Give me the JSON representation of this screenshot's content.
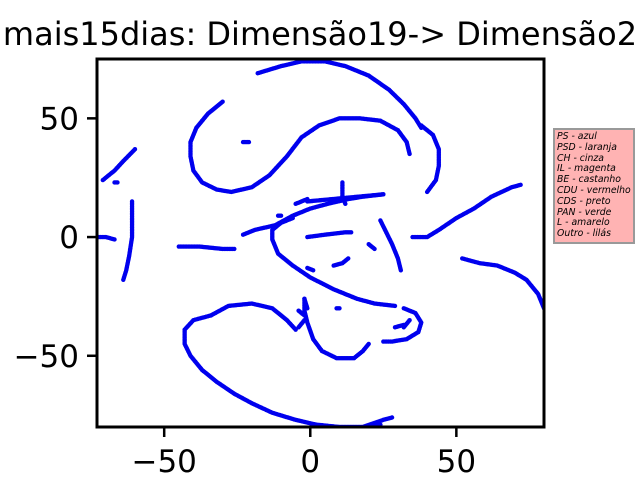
{
  "chart_data": {
    "type": "scatter",
    "title": "mais15dias: Dimensão19-> Dimensão2",
    "xlabel": "",
    "ylabel": "",
    "xlim": [
      -73,
      80
    ],
    "ylim": [
      -80,
      75
    ],
    "xticks": [
      -50,
      0,
      50
    ],
    "xtick_labels": [
      "−50",
      "0",
      "50"
    ],
    "yticks": [
      -50,
      0,
      50
    ],
    "ytick_labels": [
      "−50",
      "0",
      "50"
    ],
    "grid": false,
    "point_color": "#0000ee",
    "series": [
      {
        "segments": [
          [
            [
              -18,
              69
            ],
            [
              -10,
              72
            ],
            [
              -3,
              74
            ],
            [
              5,
              74
            ],
            [
              12,
              72
            ],
            [
              20,
              68
            ],
            [
              27,
              62
            ],
            [
              32,
              56
            ],
            [
              36,
              50
            ],
            [
              38,
              46
            ]
          ],
          [
            [
              -71,
              24
            ],
            [
              -67,
              28
            ],
            [
              -64,
              32
            ],
            [
              -60,
              37
            ]
          ],
          [
            [
              -67,
              23
            ],
            [
              -66,
              23
            ]
          ],
          [
            [
              -30,
              57
            ],
            [
              -35,
              52
            ],
            [
              -39,
              46
            ],
            [
              -41,
              40
            ],
            [
              -41,
              34
            ],
            [
              -40,
              28
            ],
            [
              -37,
              23
            ],
            [
              -32,
              20
            ],
            [
              -27,
              19
            ],
            [
              -20,
              21
            ],
            [
              -14,
              26
            ],
            [
              -8,
              34
            ],
            [
              -3,
              42
            ],
            [
              3,
              47
            ],
            [
              10,
              50
            ],
            [
              17,
              50
            ],
            [
              24,
              49
            ],
            [
              30,
              45
            ],
            [
              33,
              40
            ],
            [
              34,
              35
            ]
          ],
          [
            [
              11,
              23
            ],
            [
              11,
              17
            ],
            [
              12,
              14
            ]
          ],
          [
            [
              -23,
              40
            ],
            [
              -21,
              40
            ]
          ],
          [
            [
              38,
              47
            ],
            [
              42,
              43
            ],
            [
              44,
              37
            ],
            [
              44,
              30
            ],
            [
              43,
              24
            ],
            [
              40,
              19
            ]
          ],
          [
            [
              -61,
              15
            ],
            [
              -61,
              8
            ],
            [
              -61,
              0
            ],
            [
              -62,
              -8
            ],
            [
              -63,
              -14
            ],
            [
              -64,
              -18
            ]
          ],
          [
            [
              -73,
              0
            ],
            [
              -70,
              0
            ],
            [
              -67,
              -1
            ]
          ],
          [
            [
              -45,
              -4
            ],
            [
              -38,
              -4
            ],
            [
              -30,
              -5
            ],
            [
              -26,
              -5
            ]
          ],
          [
            [
              -23,
              1
            ],
            [
              -19,
              3
            ],
            [
              -12,
              5
            ],
            [
              -6,
              9
            ],
            [
              0,
              12
            ],
            [
              6,
              14
            ],
            [
              13,
              16
            ],
            [
              18,
              17
            ],
            [
              25,
              18
            ]
          ],
          [
            [
              -1,
              16
            ],
            [
              -5,
              14
            ]
          ],
          [
            [
              25,
              18
            ],
            [
              -1,
              15
            ]
          ],
          [
            [
              -11,
              9
            ],
            [
              -10,
              9
            ]
          ],
          [
            [
              -6,
              8
            ],
            [
              -10,
              6
            ],
            [
              -13,
              3
            ],
            [
              -13,
              -1
            ],
            [
              -11,
              -7
            ],
            [
              -6,
              -12
            ],
            [
              0,
              -17
            ],
            [
              8,
              -22
            ],
            [
              16,
              -26
            ],
            [
              22,
              -28
            ],
            [
              29,
              -29
            ]
          ],
          [
            [
              -1,
              -30
            ],
            [
              -2,
              -26
            ]
          ],
          [
            [
              -1,
              -13
            ],
            [
              1,
              -14
            ]
          ],
          [
            [
              -1,
              0
            ],
            [
              5,
              1
            ],
            [
              12,
              2
            ],
            [
              14,
              2
            ]
          ],
          [
            [
              8,
              -12
            ],
            [
              11,
              -11
            ],
            [
              13,
              -9
            ]
          ],
          [
            [
              24,
              7
            ],
            [
              26,
              2
            ],
            [
              28,
              -3
            ],
            [
              30,
              -9
            ],
            [
              31,
              -14
            ]
          ],
          [
            [
              20,
              -3
            ],
            [
              22,
              -5
            ]
          ],
          [
            [
              35,
              0
            ],
            [
              40,
              0
            ],
            [
              44,
              3
            ],
            [
              50,
              8
            ],
            [
              56,
              12
            ],
            [
              62,
              17
            ],
            [
              69,
              21
            ],
            [
              72,
              22
            ]
          ],
          [
            [
              52,
              -9
            ],
            [
              58,
              -11
            ],
            [
              64,
              -12
            ],
            [
              70,
              -15
            ],
            [
              74,
              -18
            ],
            [
              78,
              -24
            ],
            [
              80,
              -30
            ]
          ],
          [
            [
              32,
              -30
            ],
            [
              36,
              -32
            ],
            [
              38,
              -36
            ],
            [
              37,
              -40
            ],
            [
              33,
              -43
            ],
            [
              28,
              -44
            ],
            [
              25,
              -44
            ]
          ],
          [
            [
              32,
              -38
            ],
            [
              34,
              -35
            ]
          ],
          [
            [
              32,
              -37
            ],
            [
              29,
              -38
            ]
          ],
          [
            [
              -2,
              -26
            ],
            [
              -2,
              -31
            ],
            [
              -1,
              -36
            ],
            [
              1,
              -43
            ],
            [
              4,
              -48
            ],
            [
              9,
              -51
            ],
            [
              15,
              -51
            ],
            [
              18,
              -48
            ],
            [
              20,
              -45
            ]
          ],
          [
            [
              9,
              -30
            ],
            [
              10,
              -30
            ]
          ],
          [
            [
              -2,
              -33
            ],
            [
              -4,
              -31
            ]
          ],
          [
            [
              -34,
              -33
            ],
            [
              -40,
              -35
            ],
            [
              -43,
              -39
            ],
            [
              -43,
              -45
            ],
            [
              -41,
              -50
            ],
            [
              -37,
              -56
            ],
            [
              -32,
              -61
            ],
            [
              -26,
              -66
            ],
            [
              -20,
              -70
            ],
            [
              -13,
              -74
            ],
            [
              -5,
              -77
            ],
            [
              2,
              -79
            ],
            [
              10,
              -80
            ],
            [
              18,
              -80
            ],
            [
              25,
              -77
            ],
            [
              28,
              -76
            ]
          ],
          [
            [
              -34,
              -33
            ],
            [
              -28,
              -29
            ],
            [
              -20,
              -28
            ],
            [
              -13,
              -30
            ],
            [
              -8,
              -35
            ],
            [
              -5,
              -39
            ]
          ],
          [
            [
              -2,
              -35
            ],
            [
              -4,
              -38
            ]
          ],
          [
            [
              24,
              -79
            ],
            [
              22,
              -79
            ]
          ]
        ]
      }
    ],
    "legend": {
      "placement": "right",
      "entries": [
        "PS - azul",
        "PSD - laranja",
        "CH - cinza",
        "IL - magenta",
        "BE - castanho",
        "CDU - vermelho",
        "CDS - preto",
        "PAN - verde",
        "L - amarelo",
        "Outro - lilás"
      ]
    }
  }
}
